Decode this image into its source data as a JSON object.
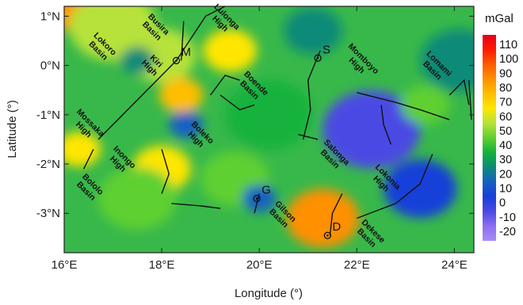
{
  "map": {
    "x_axis_title": "Longitude (°)",
    "y_axis_title": "Latitude (°)",
    "x_ticks": [
      "16°E",
      "18°E",
      "20°E",
      "22°E",
      "24°E"
    ],
    "y_ticks": [
      "1°N",
      "0°N",
      "-1°N",
      "-2°N",
      "-3°N"
    ],
    "extent": {
      "lon": [
        16,
        24.4
      ],
      "lat": [
        -3.8,
        1.2
      ]
    }
  },
  "colorbar": {
    "title": "mGal",
    "labels": [
      "110",
      "100",
      "90",
      "80",
      "70",
      "60",
      "50",
      "40",
      "30",
      "20",
      "10",
      "0",
      "-10",
      "-20"
    ],
    "colors": [
      "#e3001a",
      "#ff1a00",
      "#ff5a00",
      "#ff9000",
      "#ffbe00",
      "#ffe600",
      "#b6e23a",
      "#5fd030",
      "#12b23c",
      "#0c8a78",
      "#1560c4",
      "#1640d8",
      "#4c48e4",
      "#8c6ef0",
      "#a88cf6"
    ]
  },
  "regions": [
    {
      "label": "Lokoro Basin",
      "lon": 16.8,
      "lat": 0.4
    },
    {
      "label": "Busira Basin",
      "lon": 17.9,
      "lat": 0.8
    },
    {
      "label": "Kiri High",
      "lon": 17.85,
      "lat": 0.05
    },
    {
      "label": "Lulonga High",
      "lon": 19.3,
      "lat": 0.95
    },
    {
      "label": "Boende Basin",
      "lon": 19.9,
      "lat": -0.4
    },
    {
      "label": "Momboyo High",
      "lon": 22.1,
      "lat": 0.1
    },
    {
      "label": "Lomami Basin",
      "lon": 23.65,
      "lat": 0.0
    },
    {
      "label": "Mossaka High",
      "lon": 16.5,
      "lat": -1.2
    },
    {
      "label": "Boleko High",
      "lon": 18.8,
      "lat": -1.4
    },
    {
      "label": "Inongo High",
      "lon": 17.2,
      "lat": -1.9
    },
    {
      "label": "Salonga Basin",
      "lon": 21.55,
      "lat": -1.8
    },
    {
      "label": "Lokonia High",
      "lon": 22.6,
      "lat": -2.3
    },
    {
      "label": "Bololo Basin",
      "lon": 16.55,
      "lat": -2.45
    },
    {
      "label": "Gilson Basin",
      "lon": 20.5,
      "lat": -3.0
    },
    {
      "label": "Dekese Basin",
      "lon": 22.3,
      "lat": -3.4
    }
  ],
  "sites": [
    {
      "label": "M",
      "lon": 18.3,
      "lat": 0.1
    },
    {
      "label": "S",
      "lon": 21.2,
      "lat": 0.15
    },
    {
      "label": "G",
      "lon": 19.95,
      "lat": -2.7
    },
    {
      "label": "D",
      "lon": 21.4,
      "lat": -3.45
    }
  ],
  "anomalies": [
    {
      "lon": 16.0,
      "lat": 1.2,
      "v": 80,
      "r": 0.6
    },
    {
      "lon": 17.0,
      "lat": 0.8,
      "v": 52,
      "r": 0.9
    },
    {
      "lon": 18.0,
      "lat": 0.2,
      "v": 55,
      "r": 0.7
    },
    {
      "lon": 19.4,
      "lat": 0.3,
      "v": 65,
      "r": 0.55
    },
    {
      "lon": 18.4,
      "lat": -0.6,
      "v": 70,
      "r": 0.45
    },
    {
      "lon": 18.0,
      "lat": -2.1,
      "v": 62,
      "r": 0.6
    },
    {
      "lon": 16.3,
      "lat": -1.7,
      "v": 68,
      "r": 0.45
    },
    {
      "lon": 17.5,
      "lat": -2.7,
      "v": 42,
      "r": 0.8
    },
    {
      "lon": 20.2,
      "lat": -1.0,
      "v": 38,
      "r": 0.9
    },
    {
      "lon": 19.5,
      "lat": -2.3,
      "v": 42,
      "r": 0.7
    },
    {
      "lon": 21.3,
      "lat": -3.1,
      "v": 85,
      "r": 0.75
    },
    {
      "lon": 22.3,
      "lat": -1.3,
      "v": 2,
      "r": 1.0
    },
    {
      "lon": 23.3,
      "lat": -2.5,
      "v": 4,
      "r": 0.75
    },
    {
      "lon": 24.1,
      "lat": 0.1,
      "v": 25,
      "r": 0.8
    },
    {
      "lon": 23.4,
      "lat": -0.8,
      "v": 45,
      "r": 0.5
    },
    {
      "lon": 21.1,
      "lat": 0.7,
      "v": 24,
      "r": 0.6
    },
    {
      "lon": 20.0,
      "lat": -2.7,
      "v": 18,
      "r": 0.35
    },
    {
      "lon": 18.5,
      "lat": -1.2,
      "v": 20,
      "r": 0.35
    },
    {
      "lon": 17.5,
      "lat": 0.1,
      "v": 22,
      "r": 0.35
    }
  ],
  "faults": [
    [
      [
        18.3,
        0.1
      ],
      [
        18.9,
        1.0
      ],
      [
        19.3,
        1.2
      ]
    ],
    [
      [
        16.7,
        -1.5
      ],
      [
        17.5,
        -0.7
      ],
      [
        18.3,
        0.1
      ]
    ],
    [
      [
        18.4,
        0.1
      ],
      [
        18.45,
        0.9
      ]
    ],
    [
      [
        19.0,
        -0.6
      ],
      [
        19.3,
        -0.2
      ],
      [
        19.6,
        -0.3
      ]
    ],
    [
      [
        19.2,
        -0.6
      ],
      [
        19.6,
        -0.9
      ],
      [
        19.9,
        -0.8
      ]
    ],
    [
      [
        20.8,
        -1.4
      ],
      [
        21.2,
        -1.5
      ]
    ],
    [
      [
        21.25,
        0.3
      ],
      [
        21.0,
        -0.3
      ],
      [
        21.05,
        -0.9
      ],
      [
        20.9,
        -1.5
      ]
    ],
    [
      [
        22.0,
        -0.55
      ],
      [
        22.8,
        -0.75
      ],
      [
        23.3,
        -0.9
      ],
      [
        23.9,
        -1.1
      ]
    ],
    [
      [
        22.5,
        -0.8
      ],
      [
        22.55,
        -1.2
      ],
      [
        22.7,
        -1.6
      ]
    ],
    [
      [
        22.0,
        -3.1
      ],
      [
        22.8,
        -2.8
      ],
      [
        23.3,
        -2.4
      ],
      [
        23.55,
        -1.8
      ]
    ],
    [
      [
        21.45,
        -3.45
      ],
      [
        21.5,
        -3.0
      ],
      [
        21.7,
        -2.6
      ]
    ],
    [
      [
        18.0,
        -1.7
      ],
      [
        18.15,
        -2.2
      ],
      [
        18.0,
        -2.6
      ]
    ],
    [
      [
        18.2,
        -2.8
      ],
      [
        18.8,
        -2.85
      ],
      [
        19.2,
        -2.9
      ]
    ],
    [
      [
        16.4,
        -2.1
      ],
      [
        16.6,
        -1.7
      ]
    ],
    [
      [
        20.0,
        -2.6
      ],
      [
        19.9,
        -3.0
      ]
    ],
    [
      [
        23.9,
        -0.6
      ],
      [
        24.2,
        -0.3
      ],
      [
        24.3,
        -0.8
      ]
    ],
    [
      [
        24.3,
        -0.3
      ],
      [
        24.35,
        -1.1
      ]
    ]
  ]
}
